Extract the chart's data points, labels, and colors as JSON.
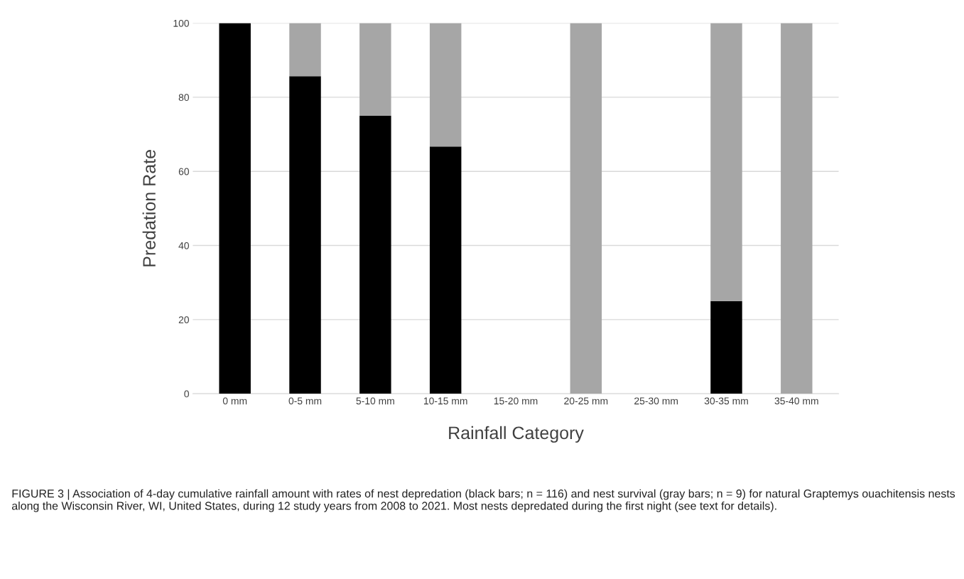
{
  "chart_data": {
    "type": "bar",
    "stacked": true,
    "xlabel": "Rainfall Category",
    "ylabel": "Predation Rate",
    "categories": [
      "0 mm",
      "0-5 mm",
      "5-10 mm",
      "10-15 mm",
      "15-20 mm",
      "20-25 mm",
      "25-30 mm",
      "30-35 mm",
      "35-40 mm"
    ],
    "series": [
      {
        "color": "#000000",
        "values": [
          100,
          85.7,
          75,
          66.7,
          0,
          0,
          0,
          25,
          0
        ]
      },
      {
        "color": "#a6a6a6",
        "values": [
          0,
          14.3,
          25,
          33.3,
          0,
          100,
          0,
          75,
          100
        ]
      }
    ],
    "ylim": [
      0,
      100
    ],
    "yticks": [
      0,
      20,
      40,
      60,
      80,
      100
    ],
    "grid": "y",
    "annotations": [
      "FIGURE 3 | Association of 4-day cumulative rainfall amount with rates of nest depredation (black bars; n = 116) and nest survival (gray bars; n = 9) for natural Graptemys ouachitensis nests along the Wisconsin River, WI, United States, during 12 study years from 2008 to 2021. Most nests depredated during the first night (see text for details)."
    ]
  }
}
